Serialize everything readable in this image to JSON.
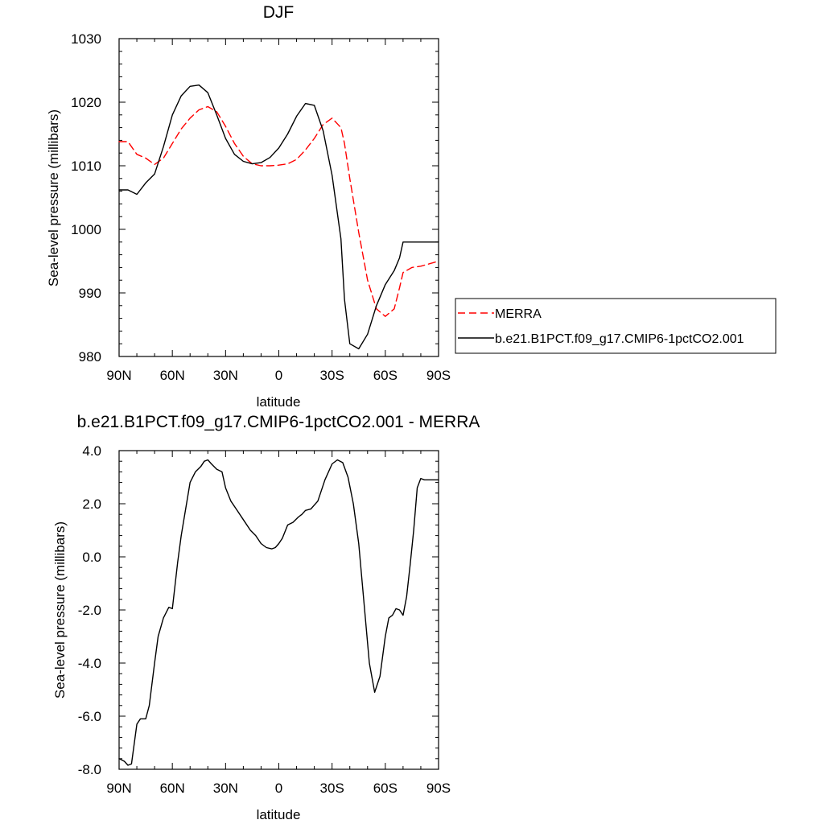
{
  "chart_data": [
    {
      "type": "line",
      "title": "DJF",
      "xlabel": "latitude",
      "ylabel": "Sea-level pressure (millibars)",
      "xlim": [
        -90,
        90
      ],
      "ylim": [
        980,
        1030
      ],
      "x_tick_labels": [
        "90N",
        "60N",
        "30N",
        "0",
        "30S",
        "60S",
        "90S"
      ],
      "y_tick_labels": [
        "980",
        "990",
        "1000",
        "1010",
        "1020",
        "1030"
      ],
      "grid": false,
      "legend": "right",
      "series": [
        {
          "name": "MERRA",
          "color": "#ff0000",
          "dash": "dashed",
          "x": [
            -90,
            -85,
            -80,
            -75,
            -70,
            -65,
            -60,
            -55,
            -50,
            -45,
            -40,
            -35,
            -30,
            -25,
            -20,
            -15,
            -10,
            -5,
            0,
            5,
            10,
            15,
            20,
            25,
            30,
            35,
            37,
            40,
            45,
            50,
            55,
            60,
            65,
            68,
            70,
            75,
            80,
            85,
            90
          ],
          "y": [
            1013.8,
            1013.8,
            1011.8,
            1011.2,
            1010.2,
            1011.2,
            1013.5,
            1015.8,
            1017.5,
            1018.8,
            1019.3,
            1018.5,
            1016.2,
            1013.5,
            1011.5,
            1010.3,
            1010.0,
            1010.0,
            1010.1,
            1010.3,
            1011.0,
            1012.5,
            1014.3,
            1016.5,
            1017.5,
            1016.0,
            1013.5,
            1008.0,
            999.5,
            992.0,
            987.5,
            986.3,
            987.5,
            990.8,
            993.2,
            994.0,
            994.2,
            994.6,
            995.0
          ]
        },
        {
          "name": "b.e21.B1PCT.f09_g17.CMIP6-1pctCO2.001",
          "color": "#000000",
          "dash": "solid",
          "x": [
            -90,
            -85,
            -80,
            -75,
            -70,
            -65,
            -60,
            -55,
            -50,
            -45,
            -40,
            -35,
            -30,
            -25,
            -20,
            -15,
            -10,
            -5,
            0,
            5,
            10,
            15,
            20,
            25,
            30,
            35,
            37,
            40,
            45,
            50,
            55,
            60,
            65,
            68,
            70,
            75,
            80,
            85,
            90
          ],
          "y": [
            1006.2,
            1006.2,
            1005.5,
            1007.3,
            1008.7,
            1013.0,
            1018.0,
            1021.0,
            1022.5,
            1022.7,
            1021.5,
            1018.0,
            1014.3,
            1011.8,
            1010.7,
            1010.3,
            1010.5,
            1011.3,
            1012.8,
            1015.0,
            1017.8,
            1019.8,
            1019.5,
            1015.5,
            1008.5,
            998.5,
            989.0,
            982.0,
            981.2,
            983.5,
            988.0,
            991.3,
            993.5,
            995.5,
            998.0,
            998.0,
            998.0,
            998.0,
            998.0
          ]
        }
      ]
    },
    {
      "type": "line",
      "title": "b.e21.B1PCT.f09_g17.CMIP6-1pctCO2.001 - MERRA",
      "xlabel": "latitude",
      "ylabel": "Sea-level pressure (millibars)",
      "xlim": [
        -90,
        90
      ],
      "ylim": [
        -8,
        4
      ],
      "x_tick_labels": [
        "90N",
        "60N",
        "30N",
        "0",
        "30S",
        "60S",
        "90S"
      ],
      "y_tick_labels": [
        "-8.0",
        "-6.0",
        "-4.0",
        "-2.0",
        "0.0",
        "2.0",
        "4.0"
      ],
      "grid": false,
      "series": [
        {
          "color": "#000000",
          "dash": "solid",
          "x": [
            -90,
            -87,
            -85,
            -83,
            -80,
            -78,
            -75,
            -73,
            -70,
            -68,
            -65,
            -62,
            -60,
            -57,
            -55,
            -52,
            -50,
            -47,
            -44,
            -42,
            -40,
            -38,
            -35,
            -32,
            -30,
            -27,
            -24,
            -20,
            -16,
            -13,
            -10,
            -7,
            -4,
            -2,
            0,
            2,
            5,
            8,
            11,
            13,
            15,
            18,
            22,
            26,
            30,
            33,
            36,
            39,
            42,
            45,
            47,
            49,
            51,
            54,
            57,
            60,
            62,
            64,
            66,
            68,
            70,
            72,
            74,
            76,
            78,
            80,
            82,
            84,
            86,
            88,
            90
          ],
          "y": [
            -7.6,
            -7.7,
            -7.85,
            -7.8,
            -6.3,
            -6.1,
            -6.1,
            -5.6,
            -4.0,
            -3.0,
            -2.3,
            -1.9,
            -1.95,
            -0.2,
            0.8,
            2.0,
            2.8,
            3.2,
            3.4,
            3.6,
            3.65,
            3.5,
            3.3,
            3.2,
            2.6,
            2.1,
            1.8,
            1.4,
            1.0,
            0.8,
            0.5,
            0.35,
            0.3,
            0.35,
            0.5,
            0.7,
            1.2,
            1.3,
            1.5,
            1.6,
            1.75,
            1.8,
            2.1,
            2.9,
            3.5,
            3.65,
            3.55,
            3.0,
            2.0,
            0.5,
            -1.0,
            -2.5,
            -4.0,
            -5.1,
            -4.5,
            -3.0,
            -2.3,
            -2.2,
            -1.95,
            -2.0,
            -2.2,
            -1.5,
            -0.3,
            1.0,
            2.6,
            2.95,
            2.9,
            2.9,
            2.9,
            2.9,
            2.9
          ]
        }
      ]
    }
  ]
}
